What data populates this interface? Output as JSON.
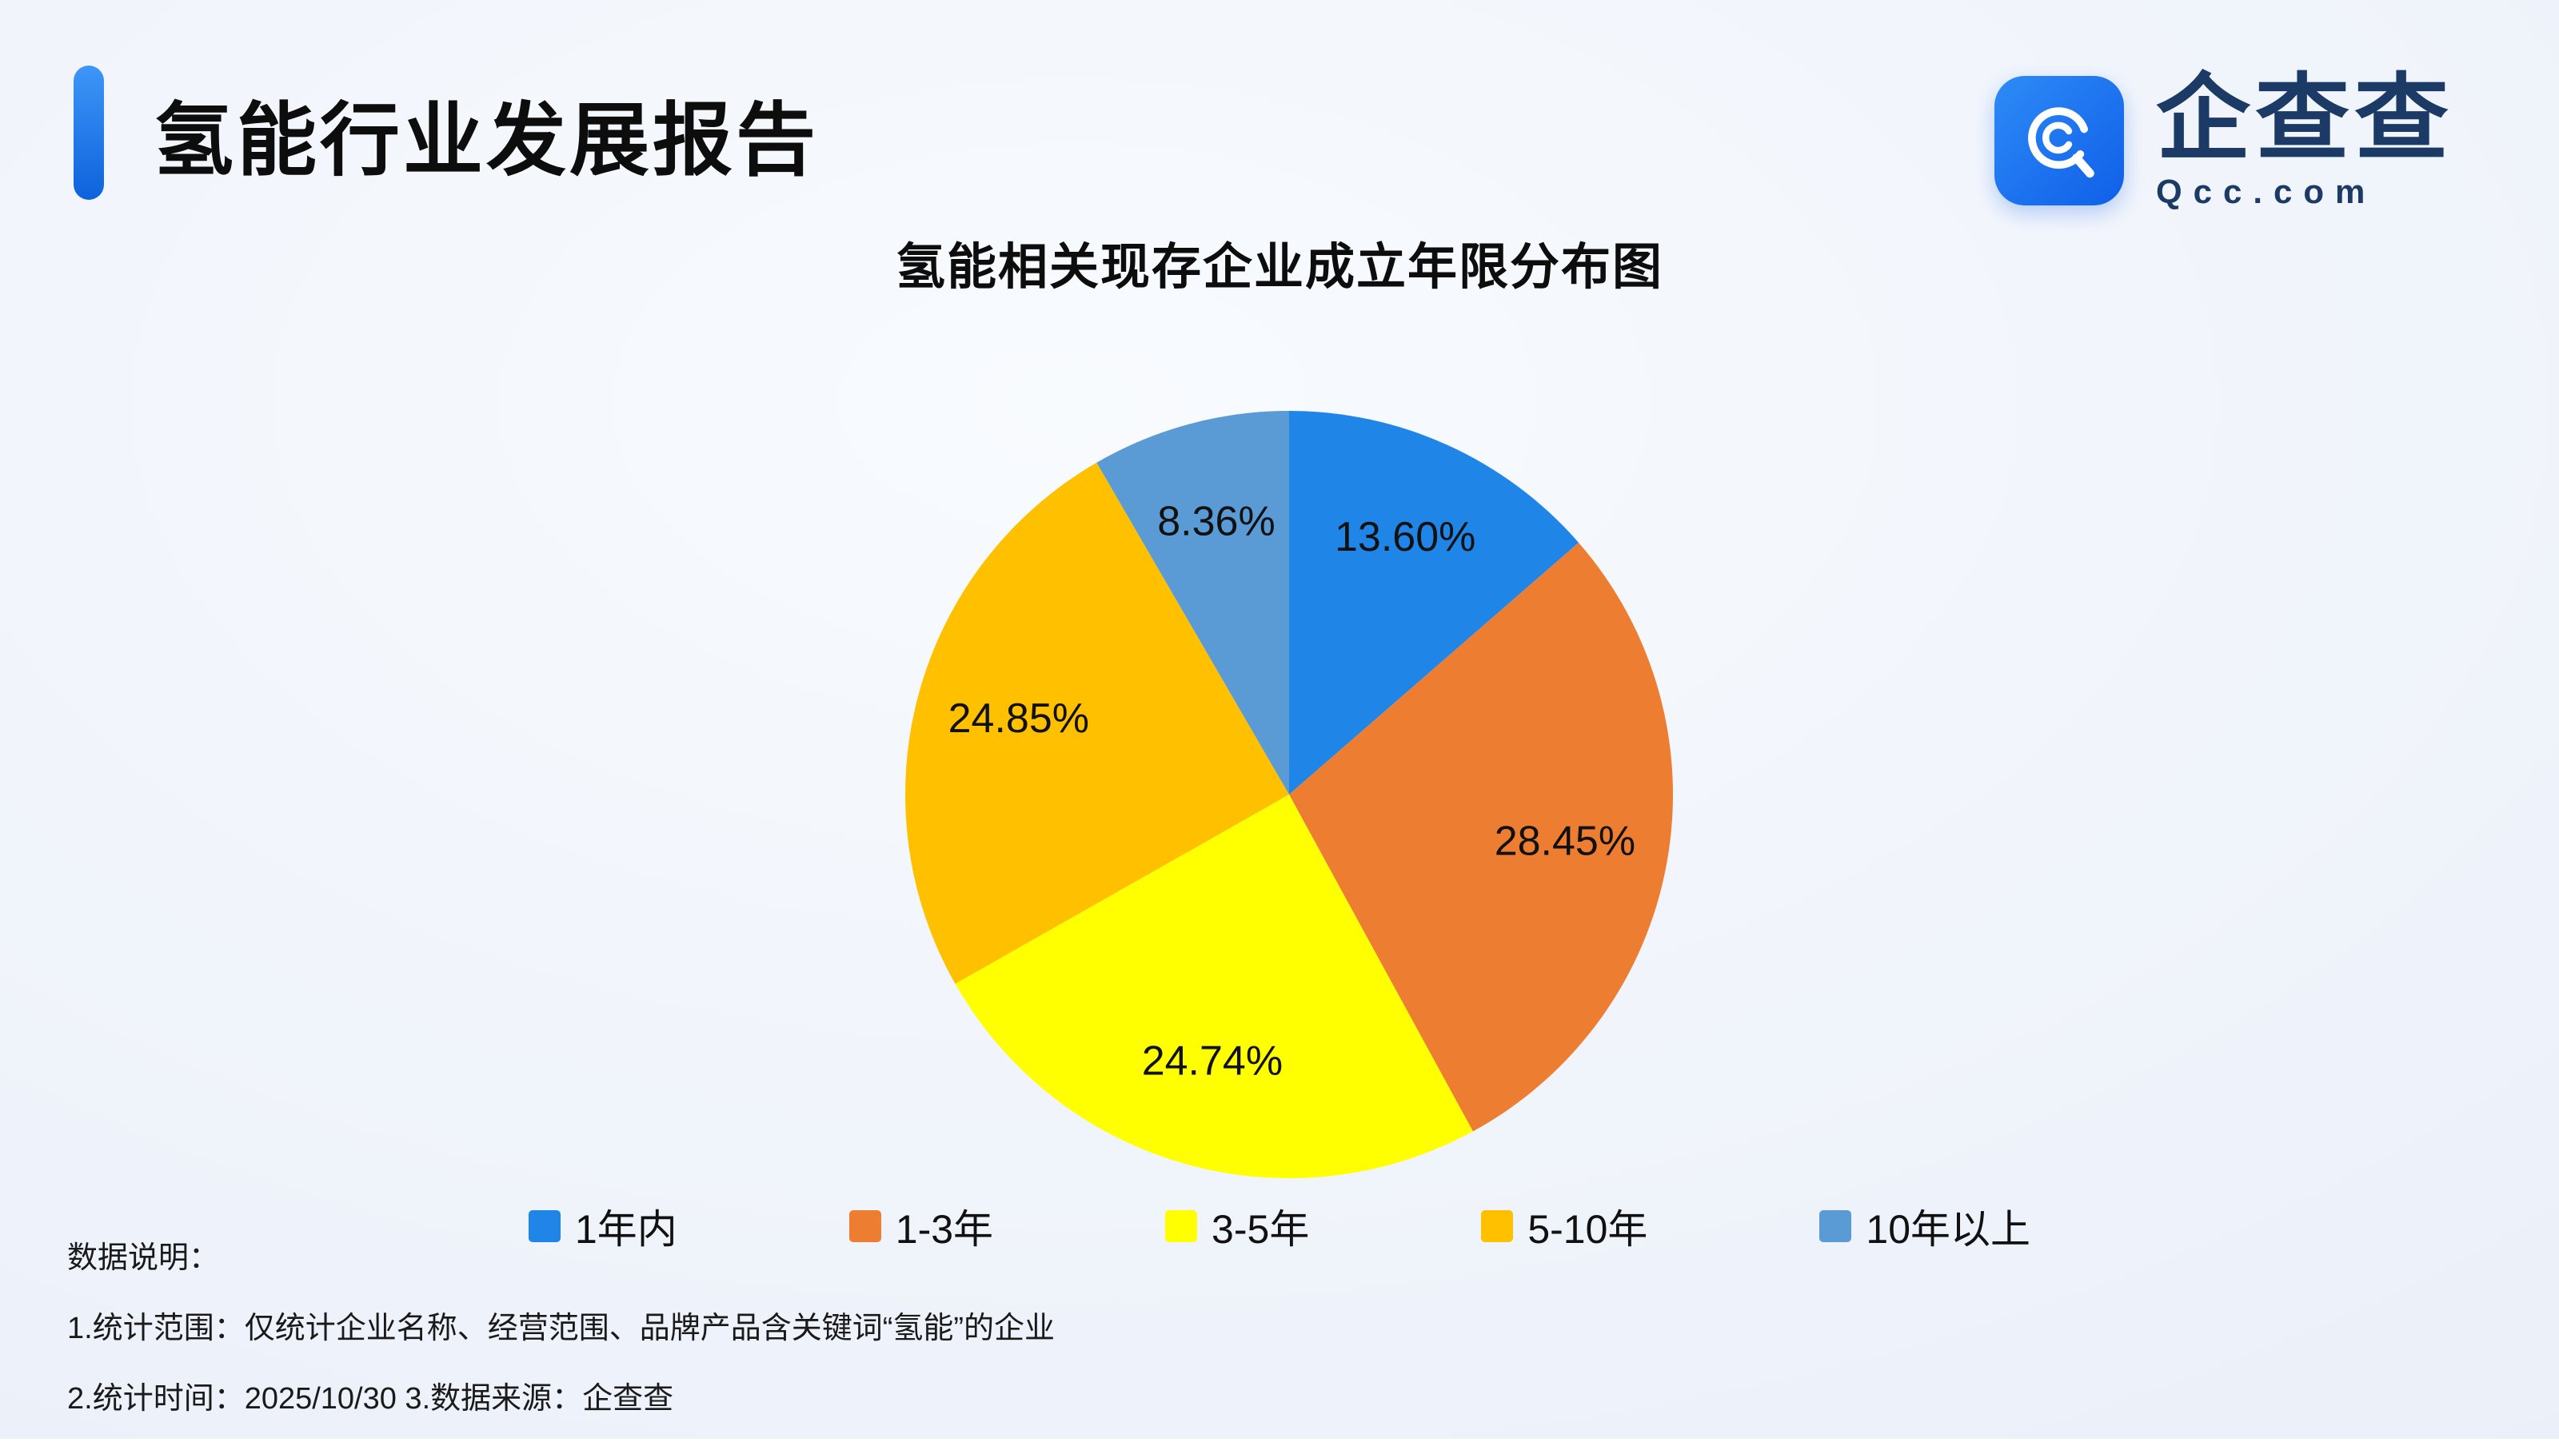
{
  "header": {
    "title": "氢能行业发展报告"
  },
  "logo": {
    "brand": "企查查",
    "domain": "Qcc.com",
    "color": "#1673F0"
  },
  "chart_data": {
    "type": "pie",
    "title": "氢能相关现存企业成立年限分布图",
    "categories": [
      "1年内",
      "1-3年",
      "3-5年",
      "5-10年",
      "10年以上"
    ],
    "values": [
      13.6,
      28.45,
      24.74,
      24.85,
      8.36
    ],
    "labels": [
      "13.60%",
      "28.45%",
      "24.74%",
      "24.85%",
      "8.36%"
    ],
    "colors": [
      "#1f86e8",
      "#ed7d31",
      "#ffff00",
      "#ffc000",
      "#5b9bd5"
    ],
    "start_angle": "top",
    "direction": "clockwise",
    "legend_position": "bottom",
    "label_color": "#111111"
  },
  "notes": {
    "line1": "数据说明：",
    "line2": "1.统计范围：仅统计企业名称、经营范围、品牌产品含关键词“氢能”的企业",
    "line3": "2.统计时间：2025/10/30 3.数据来源：企查查"
  }
}
